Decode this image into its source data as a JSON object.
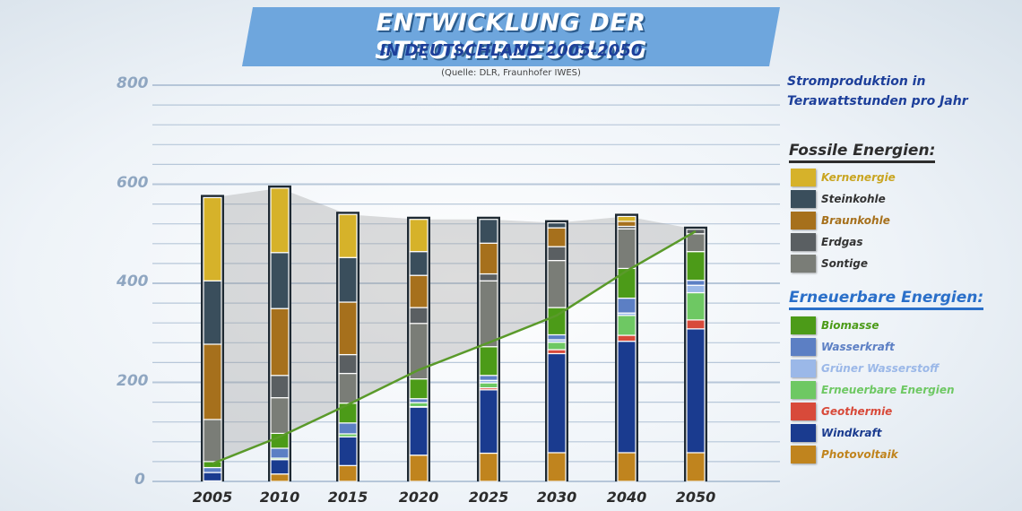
{
  "header": {
    "title_line1": "ENTWICKLUNG DER STROMERZEUGUNG",
    "title_line2": "IN DEUTSCHLAND 2005-2050",
    "source": "(Quelle: DLR, Fraunhofer IWES)",
    "subtitle": "Stromproduktion in Terawattstunden pro Jahr"
  },
  "legend": {
    "fossil_heading": "Fossile Energien:",
    "renewable_heading": "Erneuerbare Energien:"
  },
  "colors": {
    "band_fill": "#9a9a9a",
    "trend_line": "#5a9a2a",
    "grid": "#9fb4cc"
  },
  "chart_data": {
    "type": "bar",
    "stacked": true,
    "title": "ENTWICKLUNG DER STROMERZEUGUNG IN DEUTSCHLAND 2005-2050",
    "subtitle": "(Quelle: DLR, Fraunhofer IWES)",
    "ylabel": "Stromproduktion in Terawattstunden pro Jahr",
    "xlabel": "",
    "ylim": [
      0,
      800
    ],
    "y_ticks": [
      0,
      200,
      400,
      600,
      800
    ],
    "grid": true,
    "legend_position": "right",
    "categories": [
      "2005",
      "2010",
      "2015",
      "2020",
      "2025",
      "2030",
      "2040",
      "2050"
    ],
    "series": [
      {
        "name": "Photovoltaik",
        "group": "Erneuerbare Energien",
        "color": "#c0841e",
        "values": [
          1,
          15,
          32,
          53,
          57,
          58,
          58,
          58
        ]
      },
      {
        "name": "Windkraft",
        "group": "Erneuerbare Energien",
        "color": "#1a3b8f",
        "values": [
          17,
          29,
          58,
          97,
          128,
          200,
          225,
          250
        ]
      },
      {
        "name": "Geothermie",
        "group": "Erneuerbare Energien",
        "color": "#d84a3a",
        "values": [
          0,
          0,
          0,
          1,
          4,
          8,
          12,
          18
        ]
      },
      {
        "name": "Erneuerbare Energien",
        "group": "Erneuerbare Energien",
        "color": "#6ec863",
        "values": [
          0,
          3,
          6,
          8,
          10,
          15,
          40,
          55
        ]
      },
      {
        "name": "Grüner Wasserstoff",
        "group": "Erneuerbare Energien",
        "color": "#9bb8e8",
        "values": [
          0,
          0,
          0,
          0,
          5,
          5,
          5,
          15
        ]
      },
      {
        "name": "Wasserkraft",
        "group": "Erneuerbare Energien",
        "color": "#5c7fc4",
        "values": [
          10,
          20,
          22,
          8,
          10,
          10,
          30,
          10
        ]
      },
      {
        "name": "Biomasse",
        "group": "Erneuerbare Energien",
        "color": "#4c9b18",
        "values": [
          12,
          30,
          40,
          40,
          58,
          55,
          60,
          58
        ]
      },
      {
        "name": "Sontige",
        "group": "Fossile Energien",
        "color": "#7a7d77",
        "values": [
          85,
          72,
          60,
          112,
          133,
          95,
          80,
          36
        ]
      },
      {
        "name": "Erdgas",
        "group": "Fossile Energien",
        "color": "#5a5f62",
        "values": [
          0,
          45,
          38,
          32,
          14,
          28,
          5,
          9
        ]
      },
      {
        "name": "Braunkohle",
        "group": "Fossile Energien",
        "color": "#a6701c",
        "values": [
          152,
          135,
          106,
          65,
          62,
          38,
          10,
          0
        ]
      },
      {
        "name": "Steinkohle",
        "group": "Fossile Energien",
        "color": "#3a4e5c",
        "values": [
          128,
          113,
          90,
          48,
          48,
          10,
          0,
          0
        ]
      },
      {
        "name": "Kernenergie",
        "group": "Fossile Energien",
        "color": "#d6b22a",
        "values": [
          168,
          130,
          87,
          65,
          0,
          0,
          10,
          0
        ]
      }
    ],
    "renewable_trend": [
      36,
      90,
      155,
      225,
      280,
      335,
      425,
      505
    ]
  }
}
